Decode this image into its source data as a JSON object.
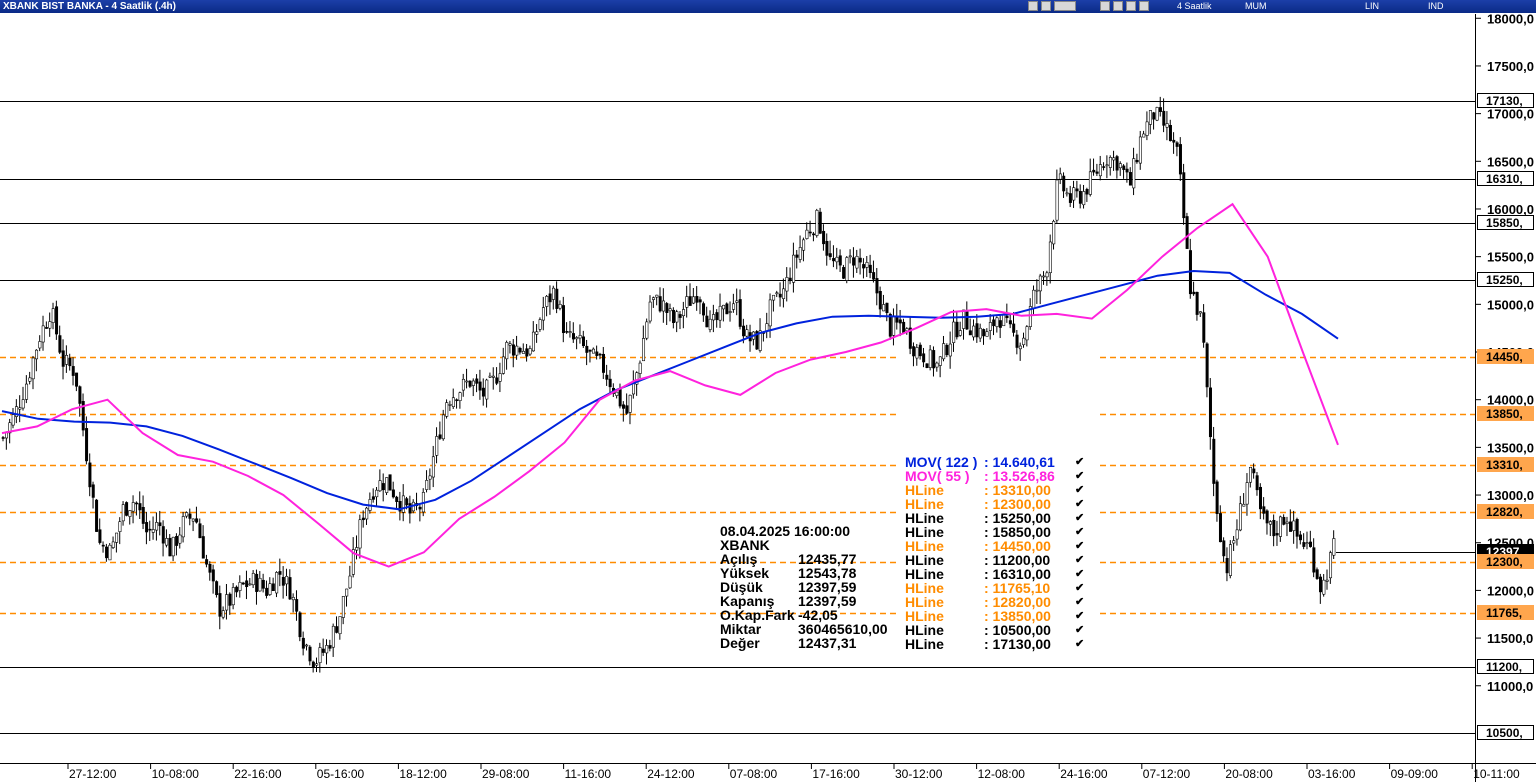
{
  "window": {
    "title": "XBANK BIST BANKA - 4 Saatlik (.4h)",
    "toolbar_items": [
      "4 Saatlik",
      "MUM",
      "LIN",
      "IND"
    ]
  },
  "colors": {
    "mov122": "#0022dd",
    "mov55": "#ff22dd",
    "hline_solid": "#000000",
    "hline_dashed": "#ff8c00",
    "candles": "#000000",
    "title_bg": "#0a2a86"
  },
  "info_box": {
    "datetime": "08.04.2025  16:00:00",
    "symbol": "XBANK",
    "rows": [
      {
        "k": "Açılış",
        "v": "12435,77"
      },
      {
        "k": "Yüksek",
        "v": "12543,78"
      },
      {
        "k": "Düşük",
        "v": "12397,59"
      },
      {
        "k": "Kapanış",
        "v": "12397,59"
      },
      {
        "k": "O.Kap.Fark",
        "v": "-42,05"
      },
      {
        "k": "Miktar",
        "v": "360465610,00"
      },
      {
        "k": "Değer",
        "v": "12437,31"
      }
    ]
  },
  "legend": [
    {
      "name": "MOV( 122 )",
      "value": ": 14.640,61",
      "color": "#0022dd"
    },
    {
      "name": "MOV( 55 )",
      "value": ": 13.526,86",
      "color": "#ff22dd"
    },
    {
      "name": "HLine",
      "value": ": 13310,00",
      "color": "#ff8c00"
    },
    {
      "name": "HLine",
      "value": ": 12300,00",
      "color": "#ff8c00"
    },
    {
      "name": "HLine",
      "value": ": 15250,00",
      "color": "#000000"
    },
    {
      "name": "HLine",
      "value": ": 15850,00",
      "color": "#000000"
    },
    {
      "name": "HLine",
      "value": ": 14450,00",
      "color": "#ff8c00"
    },
    {
      "name": "HLine",
      "value": ": 11200,00",
      "color": "#000000"
    },
    {
      "name": "HLine",
      "value": ": 16310,00",
      "color": "#000000"
    },
    {
      "name": "HLine",
      "value": ": 11765,10",
      "color": "#ff8c00"
    },
    {
      "name": "HLine",
      "value": ": 12820,00",
      "color": "#ff8c00"
    },
    {
      "name": "HLine",
      "value": ": 13850,00",
      "color": "#ff8c00"
    },
    {
      "name": "HLine",
      "value": ": 10500,00",
      "color": "#000000"
    },
    {
      "name": "HLine",
      "value": ": 17130,00",
      "color": "#000000"
    }
  ],
  "price_labels": [
    {
      "text": "17130,",
      "value": 17130,
      "style": "plain"
    },
    {
      "text": "16310,",
      "value": 16310,
      "style": "plain"
    },
    {
      "text": "15850,",
      "value": 15850,
      "style": "plain"
    },
    {
      "text": "15250,",
      "value": 15250,
      "style": "plain"
    },
    {
      "text": "14450,",
      "value": 14450,
      "style": "orange"
    },
    {
      "text": "13850,",
      "value": 13850,
      "style": "orange"
    },
    {
      "text": "13310,",
      "value": 13310,
      "style": "orange"
    },
    {
      "text": "12820,",
      "value": 12820,
      "style": "orange"
    },
    {
      "text": "12397",
      "value": 12397.59,
      "style": "black"
    },
    {
      "text": "12300,",
      "value": 12300,
      "style": "orange"
    },
    {
      "text": "11765,",
      "value": 11765,
      "style": "orange"
    },
    {
      "text": "11200,",
      "value": 11200,
      "style": "plain"
    },
    {
      "text": "10500,",
      "value": 10500,
      "style": "plain"
    }
  ],
  "chart_data": {
    "type": "candlestick",
    "title": "XBANK BIST BANKA - 4 Saatlik (.4h)",
    "ylim": [
      10300,
      18050
    ],
    "y_ticks": [
      {
        "value": 18000,
        "label": "18000,0"
      },
      {
        "value": 17500,
        "label": "17500,0"
      },
      {
        "value": 17000,
        "label": "17000,0"
      },
      {
        "value": 16500,
        "label": "16500,0"
      },
      {
        "value": 16000,
        "label": "16000,0"
      },
      {
        "value": 15500,
        "label": "15500,0"
      },
      {
        "value": 15000,
        "label": "15000,0"
      },
      {
        "value": 14500,
        "label": "14500,0"
      },
      {
        "value": 14000,
        "label": "14000,0"
      },
      {
        "value": 13500,
        "label": "13500,0"
      },
      {
        "value": 13000,
        "label": "13000,0"
      },
      {
        "value": 12500,
        "label": "12500,0"
      },
      {
        "value": 12000,
        "label": "12000,0"
      },
      {
        "value": 11500,
        "label": "11500,0"
      },
      {
        "value": 11000,
        "label": "11000,0"
      }
    ],
    "x_labels": [
      "27-12:00",
      "10-08:00",
      "22-16:00",
      "05-16:00",
      "18-12:00",
      "29-08:00",
      "11-16:00",
      "24-12:00",
      "07-08:00",
      "17-16:00",
      "30-12:00",
      "12-08:00",
      "24-16:00",
      "07-12:00",
      "20-08:00",
      "03-16:00",
      "09-09:00",
      "10-11:00"
    ],
    "hlines": [
      {
        "value": 17130,
        "style": "solid"
      },
      {
        "value": 16310,
        "style": "solid"
      },
      {
        "value": 15850,
        "style": "solid"
      },
      {
        "value": 15250,
        "style": "solid"
      },
      {
        "value": 14450,
        "style": "dashed"
      },
      {
        "value": 13850,
        "style": "dashed"
      },
      {
        "value": 13310,
        "style": "dashed"
      },
      {
        "value": 12820,
        "style": "dashed"
      },
      {
        "value": 12300,
        "style": "dashed"
      },
      {
        "value": 11765.1,
        "style": "dashed"
      },
      {
        "value": 11200,
        "style": "solid"
      },
      {
        "value": 10500,
        "style": "solid"
      }
    ],
    "price_path": [
      13600,
      13850,
      14200,
      14650,
      14950,
      14400,
      14300,
      13400,
      12500,
      12400,
      12850,
      12950,
      12600,
      12700,
      12400,
      12700,
      12800,
      12250,
      11800,
      11900,
      12050,
      12100,
      12000,
      12200,
      12000,
      11500,
      11250,
      11400,
      11700,
      12200,
      12800,
      13100,
      13150,
      12950,
      12800,
      12900,
      13450,
      14000,
      14100,
      14200,
      14050,
      14200,
      14550,
      14550,
      14500,
      14950,
      15150,
      14650,
      14600,
      14450,
      14350,
      14100,
      13850,
      14350,
      15050,
      15000,
      14800,
      15000,
      15150,
      14750,
      14900,
      15050,
      14650,
      14600,
      14950,
      15100,
      15450,
      15750,
      15900,
      15450,
      15350,
      15500,
      15350,
      15100,
      14750,
      14800,
      14550,
      14450,
      14350,
      14650,
      14850,
      14750,
      14650,
      14900,
      14700,
      14600,
      15100,
      15350,
      16300,
      16100,
      16150,
      16350,
      16550,
      16500,
      16250,
      16800,
      17000,
      16850,
      16550,
      15200,
      14800,
      13100,
      12200,
      12700,
      13300,
      12750,
      12600,
      12800,
      12550,
      12450,
      12000,
      12450
    ],
    "mov122": [
      13880,
      13800,
      13770,
      13760,
      13720,
      13620,
      13480,
      13330,
      13180,
      13020,
      12900,
      12850,
      12950,
      13150,
      13400,
      13650,
      13900,
      14100,
      14250,
      14400,
      14550,
      14700,
      14800,
      14870,
      14880,
      14870,
      14860,
      14870,
      14900,
      15000,
      15100,
      15200,
      15300,
      15350,
      15330,
      15100,
      14900,
      14640
    ],
    "mov55": [
      13650,
      13720,
      13900,
      14000,
      13650,
      13420,
      13350,
      13200,
      13000,
      12700,
      12390,
      12250,
      12400,
      12750,
      12980,
      13250,
      13550,
      14000,
      14200,
      14300,
      14150,
      14050,
      14280,
      14420,
      14500,
      14600,
      14750,
      14920,
      14950,
      14880,
      14900,
      14850,
      15150,
      15500,
      15800,
      16050,
      15500,
      14500,
      13526
    ]
  }
}
